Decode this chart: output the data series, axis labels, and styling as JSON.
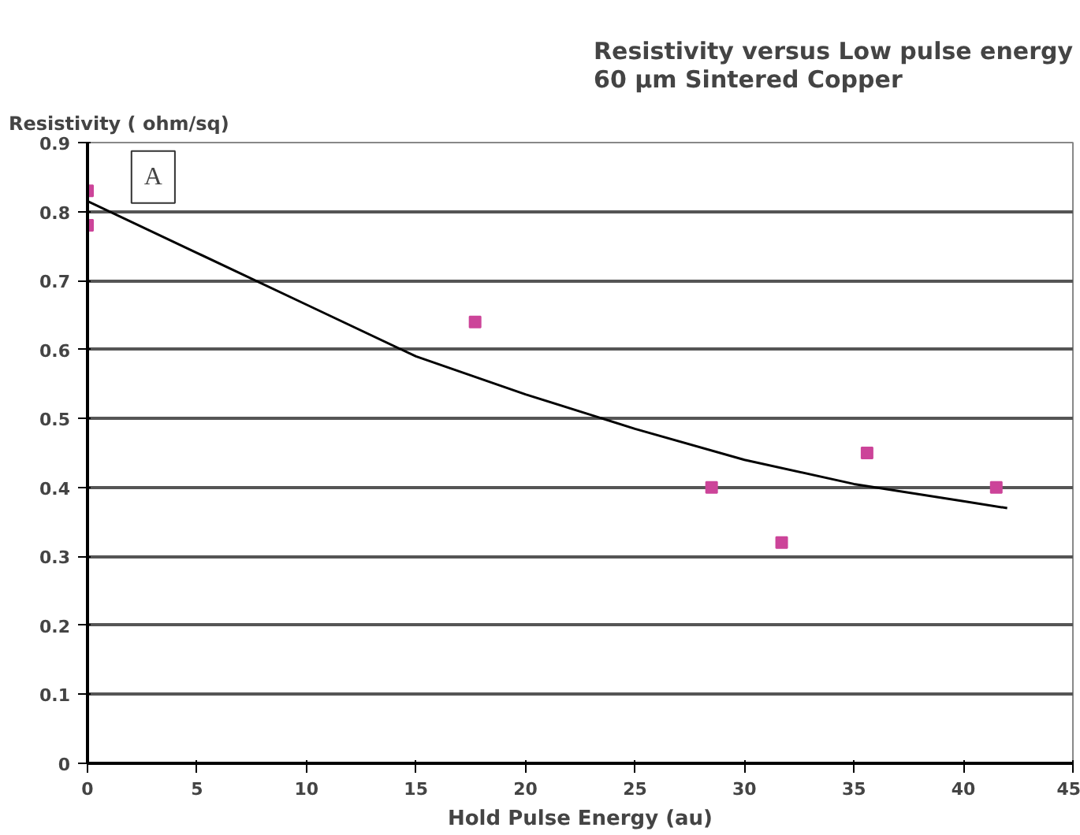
{
  "chart_data": {
    "type": "scatter",
    "title": "Resistivity versus Low pulse energy\n60 µm Sintered Copper",
    "xlabel": "Hold Pulse Energy (au)",
    "ylabel": "Resistivity  ( ohm/sq)",
    "series": [
      {
        "color": "#cc4499",
        "x": [
          0,
          0,
          17.7,
          28.5,
          31.7,
          35.6,
          41.5
        ],
        "values": [
          0.83,
          0.78,
          0.64,
          0.4,
          0.32,
          0.45,
          0.4
        ],
        "marker": "square"
      },
      {
        "type": "line",
        "color": "#000000",
        "x": [
          0,
          5,
          10,
          15,
          20,
          25,
          30,
          35,
          40,
          42
        ],
        "values": [
          0.815,
          0.74,
          0.665,
          0.59,
          0.535,
          0.485,
          0.44,
          0.405,
          0.38,
          0.37
        ],
        "marker": "none"
      }
    ],
    "annotations": [
      {
        "text": "A",
        "x": 3,
        "y": 0.85
      }
    ],
    "xlim": [
      0,
      45
    ],
    "xticks": [
      0,
      5,
      10,
      15,
      20,
      25,
      30,
      35,
      40,
      45
    ],
    "ylim": [
      0,
      0.9
    ],
    "yticks": [
      0,
      0.1,
      0.2,
      0.3,
      0.4,
      0.5,
      0.6,
      0.7,
      0.8,
      0.9
    ],
    "grid": "y"
  }
}
